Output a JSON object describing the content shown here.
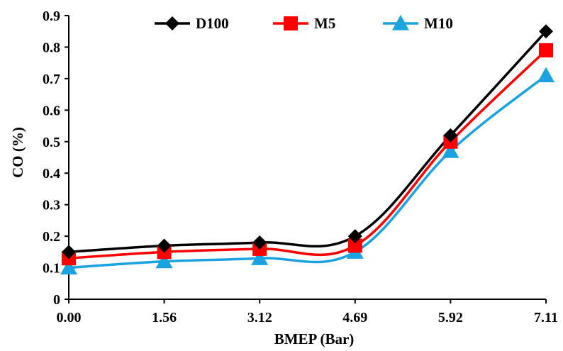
{
  "chart_data": {
    "type": "line",
    "title": "",
    "xlabel": "BMEP (Bar)",
    "ylabel": "CO (%)",
    "categories": [
      "0.00",
      "1.56",
      "3.12",
      "4.69",
      "5.92",
      "7.11"
    ],
    "ylim": [
      0,
      0.9
    ],
    "yticks": [
      "0",
      "0.1",
      "0.2",
      "0.3",
      "0.4",
      "0.5",
      "0.6",
      "0.7",
      "0.8",
      "0.9"
    ],
    "grid": false,
    "legend_position": "top",
    "series": [
      {
        "name": "D100",
        "values": [
          0.15,
          0.17,
          0.18,
          0.2,
          0.52,
          0.85
        ],
        "color": "#000000",
        "marker": "diamond"
      },
      {
        "name": "M5",
        "values": [
          0.13,
          0.15,
          0.16,
          0.17,
          0.5,
          0.79
        ],
        "color": "#ff0000",
        "marker": "square"
      },
      {
        "name": "M10",
        "values": [
          0.1,
          0.12,
          0.13,
          0.15,
          0.47,
          0.71
        ],
        "color": "#1aa3e0",
        "marker": "triangle"
      }
    ]
  }
}
